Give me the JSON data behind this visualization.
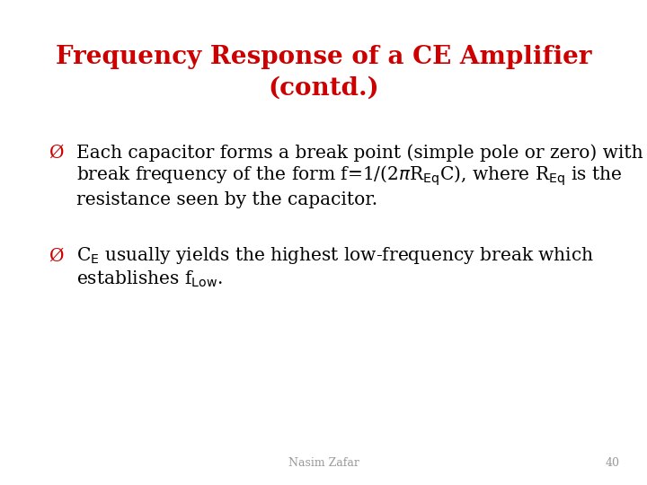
{
  "title_line1": "Frequency Response of a CE Amplifier",
  "title_line2": "(contd.)",
  "title_color": "#CC0000",
  "title_fontsize": 20,
  "bg_color": "#FFFFFF",
  "bullet_color": "#CC0000",
  "bullet_char": "Ø",
  "text_color": "#000000",
  "body_fontsize": 14.5,
  "footer_text": "Nasim Zafar",
  "footer_page": "40",
  "bullet1_line1": "Each capacitor forms a break point (simple pole or zero) with a",
  "bullet1_line2": "break frequency of the form f=1/(2$\\pi$R$_{\\rm Eq}$C), where R$_{\\rm Eq}$ is the",
  "bullet1_line3": "resistance seen by the capacitor.",
  "bullet2_line1": "C$_{\\rm E}$ usually yields the highest low-frequency break which",
  "bullet2_line2": "establishes f$_{\\rm Low}$."
}
